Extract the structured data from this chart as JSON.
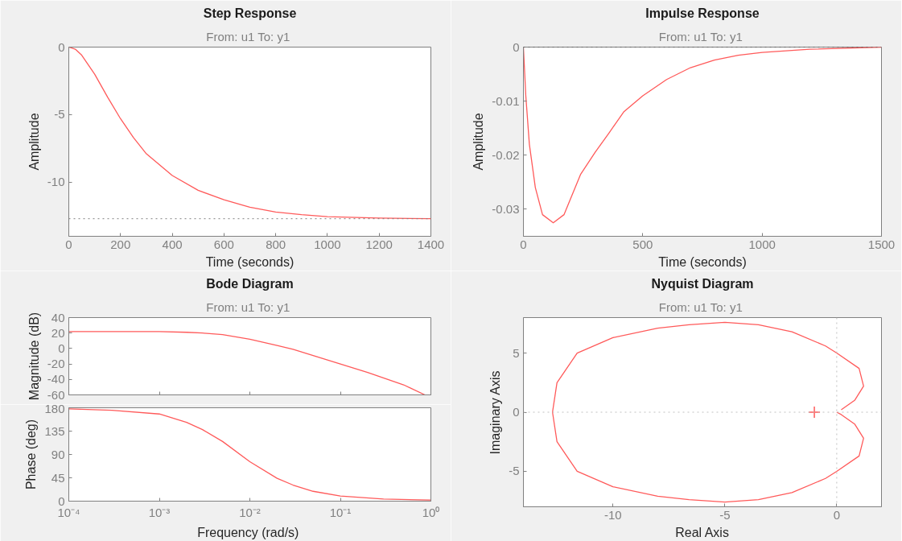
{
  "chart_data": [
    {
      "type": "line",
      "title": "Step Response",
      "subtitle": "From: u1  To: y1",
      "xlabel": "Time (seconds)",
      "ylabel": "Amplitude",
      "xlim": [
        0,
        1400
      ],
      "ylim": [
        -14,
        0
      ],
      "xticks": [
        0,
        200,
        400,
        600,
        800,
        1000,
        1200,
        1400
      ],
      "yticks": [
        0,
        -5,
        -10
      ],
      "grid": false,
      "x": [
        0,
        25,
        50,
        100,
        150,
        200,
        250,
        300,
        400,
        500,
        600,
        700,
        800,
        900,
        1000,
        1200,
        1400
      ],
      "series": [
        {
          "color": "#ff5a5a",
          "values": [
            0,
            -0.15,
            -0.6,
            -2.0,
            -3.7,
            -5.3,
            -6.7,
            -7.9,
            -9.5,
            -10.6,
            -11.3,
            -11.85,
            -12.2,
            -12.4,
            -12.55,
            -12.65,
            -12.7
          ]
        }
      ],
      "ref_lines": [
        {
          "axis": "y",
          "value": -12.7,
          "color": "#808080",
          "line_style": "dotted"
        }
      ]
    },
    {
      "type": "line",
      "title": "Impulse Response",
      "subtitle": "From: u1  To: y1",
      "xlabel": "Time (seconds)",
      "ylabel": "Amplitude",
      "xlim": [
        0,
        1500
      ],
      "ylim": [
        -0.035,
        0
      ],
      "xticks": [
        0,
        500,
        1000,
        1500
      ],
      "yticks": [
        0,
        -0.01,
        -0.02,
        -0.03
      ],
      "grid": false,
      "x": [
        0,
        10,
        25,
        50,
        80,
        125,
        170,
        240,
        300,
        360,
        420,
        500,
        600,
        700,
        800,
        900,
        1000,
        1200,
        1500
      ],
      "series": [
        {
          "color": "#ff5a5a",
          "values": [
            0,
            -0.009,
            -0.018,
            -0.026,
            -0.031,
            -0.0325,
            -0.031,
            -0.0235,
            -0.0195,
            -0.0158,
            -0.012,
            -0.009,
            -0.006,
            -0.0038,
            -0.0024,
            -0.0015,
            -0.001,
            -0.0004,
            0
          ]
        }
      ],
      "ref_lines": [
        {
          "axis": "y",
          "value": 0,
          "color": "#404040",
          "line_style": "dotted"
        }
      ]
    },
    {
      "type": "line",
      "title": "Bode Diagram",
      "subtitle": "From: u1  To: y1",
      "ylabel": "Magnitude (dB)",
      "log": "x",
      "xlim": [
        0.0001,
        1
      ],
      "ylim": [
        -60,
        40
      ],
      "xticks": [
        {
          "value": 0.0001,
          "label": null
        },
        {
          "value": 0.001,
          "label": null
        },
        {
          "value": 0.01,
          "label": null
        },
        {
          "value": 0.1,
          "label": null
        },
        {
          "value": 1,
          "label": null
        }
      ],
      "yticks": [
        40,
        20,
        0,
        -20,
        -40,
        -60
      ],
      "grid": false,
      "tick_labels": "y",
      "x": [
        0.0001,
        0.001,
        0.002,
        0.003,
        0.005,
        0.01,
        0.02,
        0.03,
        0.05,
        0.1,
        0.2,
        0.5,
        0.86
      ],
      "series": [
        {
          "color": "#ff5a5a",
          "values": [
            22,
            22,
            21,
            20,
            18,
            12,
            4,
            -1,
            -9,
            -20,
            -31,
            -47,
            -60
          ]
        }
      ]
    },
    {
      "type": "line",
      "xlabel": "Frequency  (rad/s)",
      "ylabel": "Phase (deg)",
      "log": "x",
      "xlim": [
        0.0001,
        1
      ],
      "ylim": [
        0,
        180
      ],
      "xticks": [
        {
          "value": 0.0001,
          "label": "10⁻⁴"
        },
        {
          "value": 0.001,
          "label": "10⁻³"
        },
        {
          "value": 0.01,
          "label": "10⁻²"
        },
        {
          "value": 0.1,
          "label": "10⁻¹"
        },
        {
          "value": 1,
          "label": "10⁰"
        }
      ],
      "yticks": [
        180,
        135,
        90,
        45,
        0
      ],
      "grid": false,
      "x": [
        0.0001,
        0.0003,
        0.001,
        0.002,
        0.003,
        0.005,
        0.01,
        0.02,
        0.03,
        0.05,
        0.1,
        0.3,
        1
      ],
      "series": [
        {
          "color": "#ff5a5a",
          "values": [
            178,
            175,
            168,
            152,
            138,
            115,
            76,
            44,
            31,
            19,
            10,
            4,
            2
          ]
        }
      ]
    },
    {
      "type": "line",
      "title": "Nyquist Diagram",
      "subtitle": "From: u1  To: y1",
      "xlabel": "Real Axis",
      "ylabel": "Imaginary Axis",
      "xlim": [
        -14,
        2
      ],
      "ylim": [
        -8,
        8
      ],
      "xticks": [
        -10,
        -5,
        0
      ],
      "yticks": [
        5,
        0,
        -5
      ],
      "grid": false,
      "series": [
        {
          "color": "#ff5a5a",
          "x": [
            0,
            0.2,
            0.8,
            1.2,
            1,
            0,
            -0.5,
            -2,
            -3.5,
            -5,
            -6.6,
            -8,
            -10,
            -11.6,
            -12.5,
            -12.7,
            -12.5,
            -11.6,
            -10,
            -8,
            -6.6,
            -5,
            -3.5,
            -2,
            -0.5,
            0,
            1,
            1.2,
            0.8,
            0.2
          ],
          "values": [
            0,
            -0.2,
            -1,
            -2.2,
            -3.7,
            -5,
            -5.6,
            -6.8,
            -7.4,
            -7.6,
            -7.4,
            -7.1,
            -6.3,
            -5,
            -2.5,
            0,
            2.5,
            5,
            6.3,
            7.1,
            7.4,
            7.6,
            7.4,
            6.8,
            5.6,
            5,
            3.7,
            2.2,
            1,
            0.2
          ]
        },
        {
          "type": "scatter",
          "marker": "cross",
          "color": "#ff5a5a",
          "x": [
            -1
          ],
          "values": [
            0
          ]
        }
      ],
      "ref_lines": [
        {
          "axis": "x",
          "value": 0,
          "color": "#c0c0c0",
          "line_style": "dotted"
        },
        {
          "axis": "y",
          "value": 0,
          "color": "#c0c0c0",
          "line_style": "dotted"
        }
      ]
    }
  ]
}
